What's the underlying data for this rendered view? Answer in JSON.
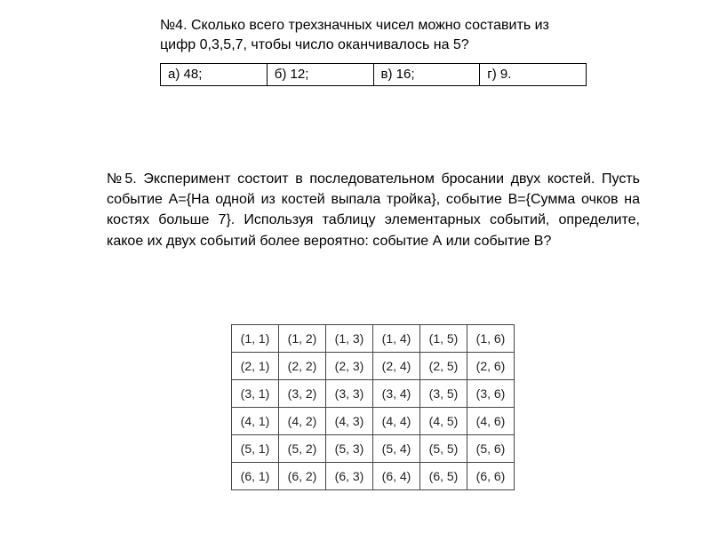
{
  "q4": {
    "text": "№4. Сколько всего трехзначных чисел можно составить из цифр 0,3,5,7, чтобы число оканчивалось на 5?",
    "answers": [
      "а) 48;",
      "б) 12;",
      "в) 16;",
      "г) 9."
    ]
  },
  "q5": {
    "text": "№5. Эксперимент состоит в последовательном бросании двух костей. Пусть событие А={На одной из костей выпала тройка}, событие В={Сумма очков на костях больше 7}. Используя таблицу элементарных событий, определите, какое их двух событий более вероятно: событие А или событие В?"
  },
  "dice": {
    "rows": [
      [
        "(1, 1)",
        "(1, 2)",
        "(1, 3)",
        "(1, 4)",
        "(1, 5)",
        "(1, 6)"
      ],
      [
        "(2, 1)",
        "(2, 2)",
        "(2, 3)",
        "(2, 4)",
        "(2, 5)",
        "(2, 6)"
      ],
      [
        "(3, 1)",
        "(3, 2)",
        "(3, 3)",
        "(3, 4)",
        "(3, 5)",
        "(3, 6)"
      ],
      [
        "(4, 1)",
        "(4, 2)",
        "(4, 3)",
        "(4, 4)",
        "(4, 5)",
        "(4, 6)"
      ],
      [
        "(5, 1)",
        "(5, 2)",
        "(5, 3)",
        "(5, 4)",
        "(5, 5)",
        "(5, 6)"
      ],
      [
        "(6, 1)",
        "(6, 2)",
        "(6, 3)",
        "(6, 4)",
        "(6, 5)",
        "(6, 6)"
      ]
    ]
  }
}
